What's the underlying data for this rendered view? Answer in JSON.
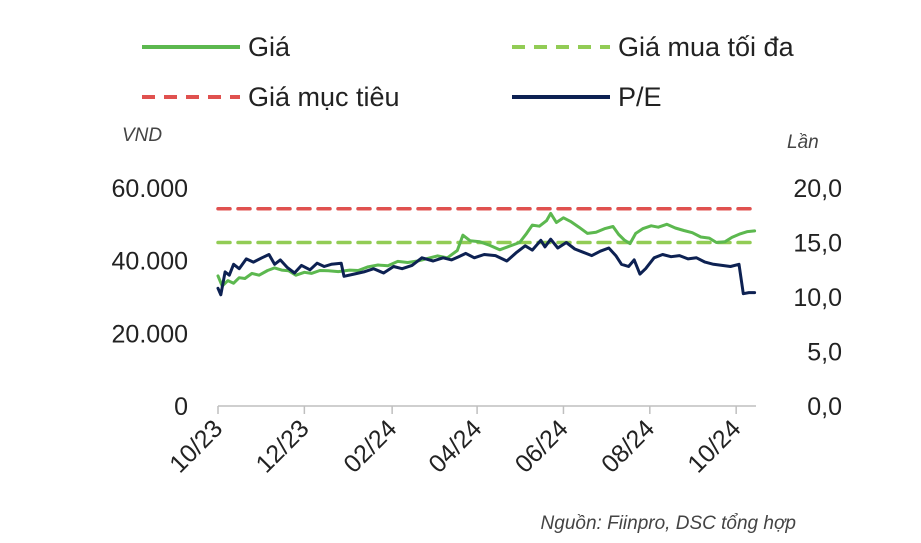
{
  "chart_data": {
    "type": "line",
    "legend": {
      "placement": "top",
      "items": [
        {
          "key": "gia",
          "label": "Giá",
          "color": "#5cb84f",
          "style": "solid"
        },
        {
          "key": "gia_mua_toi_da",
          "label": "Giá mua tối đa",
          "color": "#92cc55",
          "style": "dashed"
        },
        {
          "key": "gia_muc_tieu",
          "label": "Giá mục tiêu",
          "color": "#e0514f",
          "style": "dashed"
        },
        {
          "key": "pe",
          "label": "P/E",
          "color": "#0d2152",
          "style": "solid"
        }
      ]
    },
    "left_axis": {
      "unit": "VND",
      "range": [
        0,
        60000
      ],
      "ticks": [
        {
          "v": 0,
          "label": "0"
        },
        {
          "v": 20000,
          "label": "20.000"
        },
        {
          "v": 40000,
          "label": "40.000"
        },
        {
          "v": 60000,
          "label": "60.000"
        }
      ]
    },
    "right_axis": {
      "unit": "Lần",
      "range": [
        0,
        20
      ],
      "ticks": [
        {
          "v": 0,
          "label": "0,0"
        },
        {
          "v": 5,
          "label": "5,0"
        },
        {
          "v": 10,
          "label": "10,0"
        },
        {
          "v": 15,
          "label": "15,0"
        },
        {
          "v": 20,
          "label": "20,0"
        }
      ]
    },
    "x_axis": {
      "range": [
        "2023-10-01",
        "2024-10-15"
      ],
      "ticks": [
        {
          "date": "2023-10-01",
          "label": "10/23"
        },
        {
          "date": "2023-12-01",
          "label": "12/23"
        },
        {
          "date": "2024-02-01",
          "label": "02/24"
        },
        {
          "date": "2024-04-01",
          "label": "04/24"
        },
        {
          "date": "2024-06-01",
          "label": "06/24"
        },
        {
          "date": "2024-08-01",
          "label": "08/24"
        },
        {
          "date": "2024-10-01",
          "label": "10/24"
        }
      ]
    },
    "series": [
      {
        "key": "gia",
        "name": "Giá",
        "axis": "left",
        "points": [
          [
            "2023-10-01",
            35800
          ],
          [
            "2023-10-04",
            33000
          ],
          [
            "2023-10-08",
            34500
          ],
          [
            "2023-10-12",
            33800
          ],
          [
            "2023-10-16",
            35300
          ],
          [
            "2023-10-20",
            35100
          ],
          [
            "2023-10-25",
            36500
          ],
          [
            "2023-10-30",
            36000
          ],
          [
            "2023-11-05",
            37300
          ],
          [
            "2023-11-10",
            38000
          ],
          [
            "2023-11-15",
            37400
          ],
          [
            "2023-11-20",
            37200
          ],
          [
            "2023-11-25",
            36000
          ],
          [
            "2023-12-01",
            36800
          ],
          [
            "2023-12-06",
            36500
          ],
          [
            "2023-12-12",
            37300
          ],
          [
            "2023-12-18",
            37200
          ],
          [
            "2023-12-25",
            37000
          ],
          [
            "2024-01-02",
            37400
          ],
          [
            "2024-01-08",
            37300
          ],
          [
            "2024-01-15",
            38300
          ],
          [
            "2024-01-22",
            38800
          ],
          [
            "2024-01-29",
            38600
          ],
          [
            "2024-02-05",
            39800
          ],
          [
            "2024-02-12",
            39500
          ],
          [
            "2024-02-19",
            39900
          ],
          [
            "2024-02-26",
            40600
          ],
          [
            "2024-03-04",
            41300
          ],
          [
            "2024-03-11",
            40800
          ],
          [
            "2024-03-18",
            42800
          ],
          [
            "2024-03-22",
            47000
          ],
          [
            "2024-03-27",
            45500
          ],
          [
            "2024-04-03",
            45200
          ],
          [
            "2024-04-10",
            44200
          ],
          [
            "2024-04-17",
            43000
          ],
          [
            "2024-04-24",
            44000
          ],
          [
            "2024-05-01",
            45000
          ],
          [
            "2024-05-06",
            47500
          ],
          [
            "2024-05-10",
            49800
          ],
          [
            "2024-05-15",
            49500
          ],
          [
            "2024-05-20",
            51000
          ],
          [
            "2024-05-23",
            53000
          ],
          [
            "2024-05-27",
            50500
          ],
          [
            "2024-06-01",
            51800
          ],
          [
            "2024-06-06",
            50800
          ],
          [
            "2024-06-12",
            49200
          ],
          [
            "2024-06-18",
            47500
          ],
          [
            "2024-06-24",
            47800
          ],
          [
            "2024-06-30",
            48800
          ],
          [
            "2024-07-06",
            49400
          ],
          [
            "2024-07-10",
            47200
          ],
          [
            "2024-07-14",
            45700
          ],
          [
            "2024-07-18",
            44700
          ],
          [
            "2024-07-22",
            47500
          ],
          [
            "2024-07-27",
            48800
          ],
          [
            "2024-08-02",
            49600
          ],
          [
            "2024-08-07",
            49200
          ],
          [
            "2024-08-13",
            50000
          ],
          [
            "2024-08-19",
            49000
          ],
          [
            "2024-08-25",
            48300
          ],
          [
            "2024-08-31",
            47700
          ],
          [
            "2024-09-06",
            46500
          ],
          [
            "2024-09-12",
            46200
          ],
          [
            "2024-09-17",
            45000
          ],
          [
            "2024-09-23",
            45200
          ],
          [
            "2024-09-28",
            46400
          ],
          [
            "2024-10-04",
            47400
          ],
          [
            "2024-10-09",
            48000
          ],
          [
            "2024-10-14",
            48200
          ]
        ]
      },
      {
        "key": "pe",
        "name": "P/E",
        "axis": "right",
        "points": [
          [
            "2023-10-01",
            10.8
          ],
          [
            "2023-10-03",
            10.2
          ],
          [
            "2023-10-06",
            12.3
          ],
          [
            "2023-10-09",
            12.0
          ],
          [
            "2023-10-12",
            13.0
          ],
          [
            "2023-10-16",
            12.6
          ],
          [
            "2023-10-21",
            13.5
          ],
          [
            "2023-10-26",
            13.2
          ],
          [
            "2023-11-01",
            13.6
          ],
          [
            "2023-11-06",
            13.9
          ],
          [
            "2023-11-10",
            13.0
          ],
          [
            "2023-11-14",
            13.4
          ],
          [
            "2023-11-19",
            12.7
          ],
          [
            "2023-11-24",
            12.2
          ],
          [
            "2023-11-29",
            12.9
          ],
          [
            "2023-12-05",
            12.5
          ],
          [
            "2023-12-10",
            13.1
          ],
          [
            "2023-12-15",
            12.8
          ],
          [
            "2023-12-20",
            13.0
          ],
          [
            "2023-12-27",
            13.1
          ],
          [
            "2023-12-29",
            11.9
          ],
          [
            "2024-01-05",
            12.1
          ],
          [
            "2024-01-12",
            12.3
          ],
          [
            "2024-01-19",
            12.6
          ],
          [
            "2024-01-26",
            12.2
          ],
          [
            "2024-02-02",
            12.8
          ],
          [
            "2024-02-08",
            12.6
          ],
          [
            "2024-02-15",
            12.9
          ],
          [
            "2024-02-22",
            13.6
          ],
          [
            "2024-03-01",
            13.3
          ],
          [
            "2024-03-08",
            13.6
          ],
          [
            "2024-03-14",
            13.4
          ],
          [
            "2024-03-19",
            13.7
          ],
          [
            "2024-03-24",
            14.0
          ],
          [
            "2024-03-30",
            13.6
          ],
          [
            "2024-04-06",
            13.9
          ],
          [
            "2024-04-14",
            13.8
          ],
          [
            "2024-04-22",
            13.3
          ],
          [
            "2024-04-29",
            14.1
          ],
          [
            "2024-05-05",
            14.7
          ],
          [
            "2024-05-10",
            14.3
          ],
          [
            "2024-05-16",
            15.2
          ],
          [
            "2024-05-19",
            14.6
          ],
          [
            "2024-05-23",
            15.3
          ],
          [
            "2024-05-28",
            14.5
          ],
          [
            "2024-06-03",
            15.0
          ],
          [
            "2024-06-09",
            14.4
          ],
          [
            "2024-06-15",
            14.1
          ],
          [
            "2024-06-21",
            13.8
          ],
          [
            "2024-06-27",
            14.2
          ],
          [
            "2024-07-03",
            14.5
          ],
          [
            "2024-07-08",
            13.8
          ],
          [
            "2024-07-12",
            13.0
          ],
          [
            "2024-07-17",
            12.8
          ],
          [
            "2024-07-21",
            13.4
          ],
          [
            "2024-07-25",
            12.1
          ],
          [
            "2024-07-29",
            12.6
          ],
          [
            "2024-08-04",
            13.6
          ],
          [
            "2024-08-10",
            13.9
          ],
          [
            "2024-08-16",
            13.7
          ],
          [
            "2024-08-22",
            13.8
          ],
          [
            "2024-08-28",
            13.5
          ],
          [
            "2024-09-03",
            13.6
          ],
          [
            "2024-09-09",
            13.2
          ],
          [
            "2024-09-15",
            13.0
          ],
          [
            "2024-09-21",
            12.9
          ],
          [
            "2024-09-27",
            12.8
          ],
          [
            "2024-10-03",
            13.0
          ],
          [
            "2024-10-06",
            10.3
          ],
          [
            "2024-10-10",
            10.4
          ],
          [
            "2024-10-14",
            10.4
          ]
        ]
      },
      {
        "key": "gia_mua_toi_da",
        "name": "Giá mua tối đa",
        "axis": "left",
        "points": [
          [
            "2023-10-01",
            45000
          ],
          [
            "2024-10-14",
            45000
          ]
        ]
      },
      {
        "key": "gia_muc_tieu",
        "name": "Giá mục tiêu",
        "axis": "left",
        "points": [
          [
            "2023-10-01",
            54300
          ],
          [
            "2024-10-14",
            54300
          ]
        ]
      }
    ],
    "source": "Nguồn: Fiinpro, DSC tổng hợp"
  }
}
